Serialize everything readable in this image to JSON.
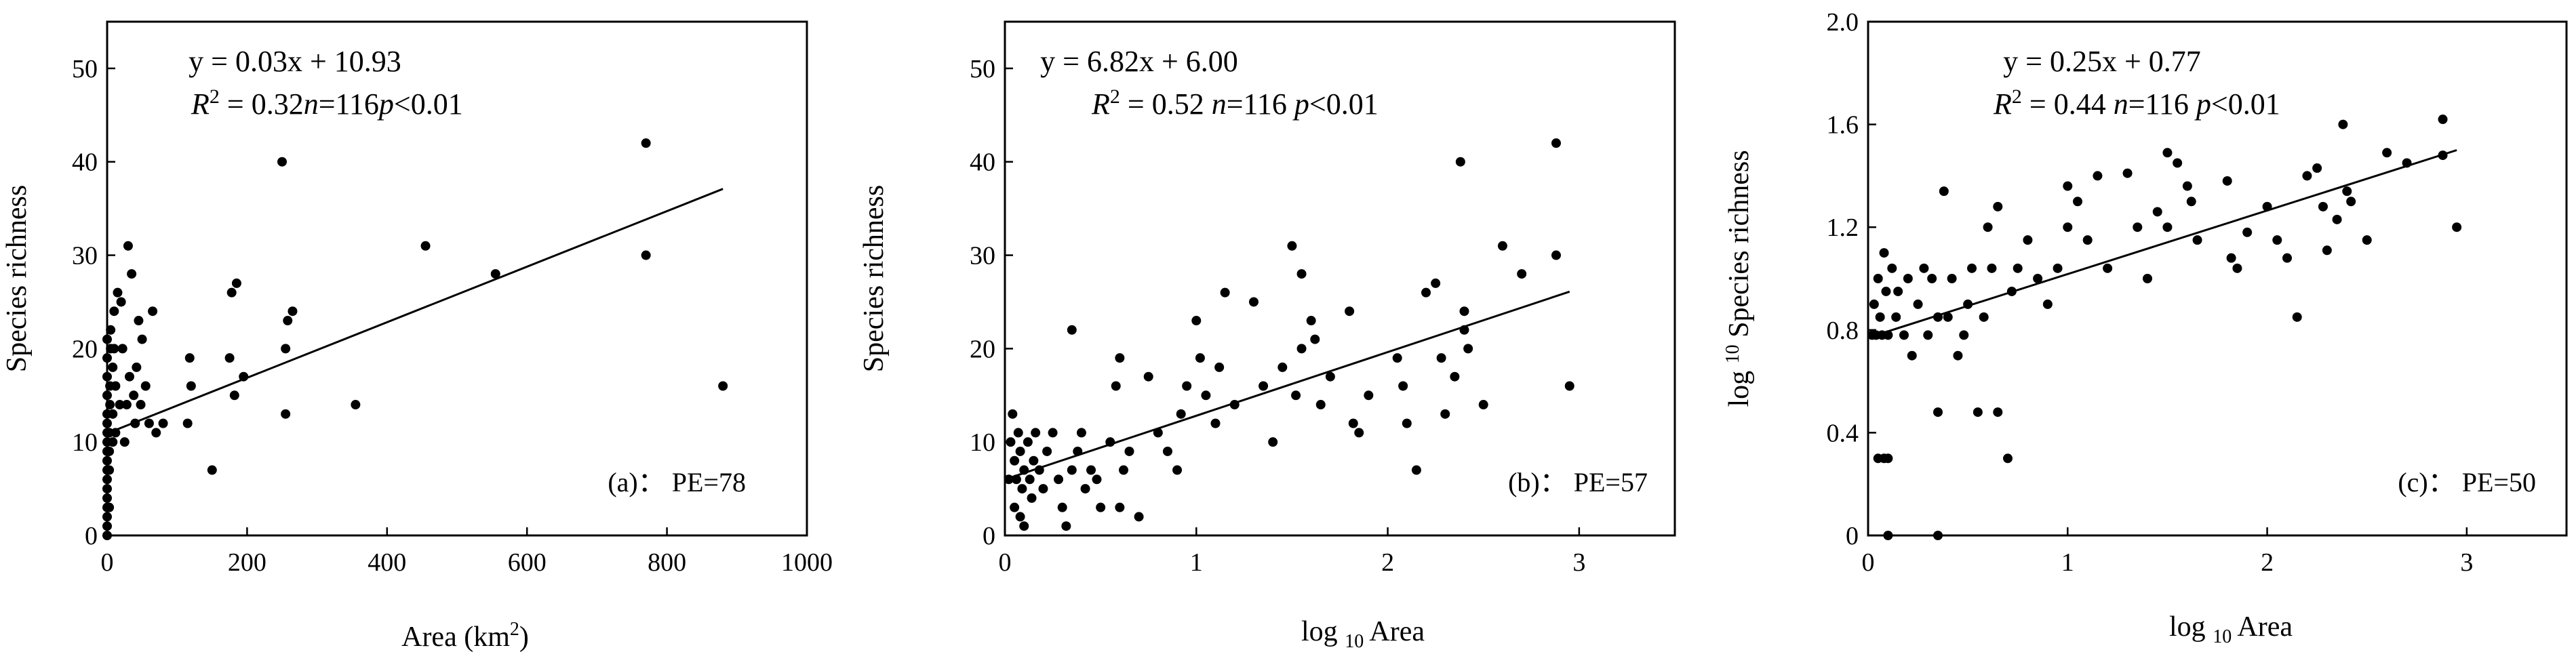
{
  "chart_data": [
    {
      "type": "scatter",
      "xlabel": "Area (km",
      "xlabel_sup": "2",
      "xlabel_close": ")",
      "ylabel": "Species richness",
      "xlim": [
        0,
        1000
      ],
      "ylim": [
        0,
        55
      ],
      "xticks": [
        "0",
        "200",
        "400",
        "600",
        "800",
        "1000"
      ],
      "xtick_values": [
        0,
        200,
        400,
        600,
        800,
        1000
      ],
      "yticks": [
        "0",
        "10",
        "20",
        "30",
        "40",
        "50"
      ],
      "ytick_values": [
        0,
        10,
        20,
        30,
        40,
        50
      ],
      "equation": "y = 0.03x + 10.93",
      "stats": {
        "r2_label": "R",
        "r2_sup": "2",
        "r2_value": " = 0.32",
        "n_label": "n",
        "n_value": "=116",
        "p_label": "p",
        "p_value": "<0.01"
      },
      "annotation": "(a)： PE=78",
      "trendline": {
        "x": [
          0,
          880
        ],
        "y": [
          10.93,
          37.1
        ]
      },
      "points": [
        [
          0,
          0
        ],
        [
          0,
          1
        ],
        [
          0,
          2
        ],
        [
          0,
          3
        ],
        [
          0,
          4
        ],
        [
          0,
          5
        ],
        [
          0,
          6
        ],
        [
          0,
          7
        ],
        [
          0,
          8
        ],
        [
          0,
          9
        ],
        [
          0,
          10
        ],
        [
          0,
          11
        ],
        [
          0,
          12
        ],
        [
          0,
          13
        ],
        [
          0,
          15
        ],
        [
          0,
          17
        ],
        [
          0,
          19
        ],
        [
          0,
          21
        ],
        [
          3,
          3
        ],
        [
          3,
          7
        ],
        [
          3,
          9
        ],
        [
          3,
          11
        ],
        [
          4,
          14
        ],
        [
          4,
          16
        ],
        [
          5,
          20
        ],
        [
          5,
          22
        ],
        [
          8,
          10
        ],
        [
          8,
          13
        ],
        [
          8,
          18
        ],
        [
          10,
          20
        ],
        [
          10,
          24
        ],
        [
          12,
          11
        ],
        [
          12,
          16
        ],
        [
          15,
          26
        ],
        [
          18,
          14
        ],
        [
          20,
          25
        ],
        [
          22,
          20
        ],
        [
          25,
          10
        ],
        [
          28,
          14
        ],
        [
          30,
          31
        ],
        [
          32,
          17
        ],
        [
          35,
          28
        ],
        [
          38,
          15
        ],
        [
          40,
          12
        ],
        [
          42,
          18
        ],
        [
          45,
          23
        ],
        [
          48,
          14
        ],
        [
          50,
          21
        ],
        [
          55,
          16
        ],
        [
          60,
          12
        ],
        [
          65,
          24
        ],
        [
          70,
          11
        ],
        [
          80,
          12
        ],
        [
          115,
          12
        ],
        [
          118,
          19
        ],
        [
          120,
          16
        ],
        [
          150,
          7
        ],
        [
          175,
          19
        ],
        [
          178,
          26
        ],
        [
          182,
          15
        ],
        [
          185,
          27
        ],
        [
          195,
          17
        ],
        [
          250,
          40
        ],
        [
          255,
          13
        ],
        [
          255,
          20
        ],
        [
          258,
          23
        ],
        [
          265,
          24
        ],
        [
          355,
          14
        ],
        [
          455,
          31
        ],
        [
          555,
          28
        ],
        [
          770,
          42
        ],
        [
          770,
          30
        ],
        [
          880,
          16
        ]
      ]
    },
    {
      "type": "scatter",
      "xlabel": "log ",
      "xlabel_sub": "10",
      "xlabel_tail": " Area",
      "ylabel": "Species richness",
      "xlim": [
        0,
        3.5
      ],
      "ylim": [
        0,
        55
      ],
      "xticks": [
        "0",
        "1",
        "2",
        "3"
      ],
      "xtick_values": [
        0,
        1,
        2,
        3
      ],
      "yticks": [
        "0",
        "10",
        "20",
        "30",
        "40",
        "50"
      ],
      "ytick_values": [
        0,
        10,
        20,
        30,
        40,
        50
      ],
      "equation": "y = 6.82x + 6.00",
      "stats": {
        "r2_label": "R",
        "r2_sup": "2",
        "r2_value": " = 0.52 ",
        "n_label": "n",
        "n_value": "=116 ",
        "p_label": "p",
        "p_value": "<0.01"
      },
      "annotation": "(b)： PE=57",
      "trendline": {
        "x": [
          0,
          2.95
        ],
        "y": [
          6.0,
          26.1
        ]
      },
      "points": [
        [
          0.02,
          6
        ],
        [
          0.03,
          10
        ],
        [
          0.04,
          13
        ],
        [
          0.05,
          8
        ],
        [
          0.05,
          3
        ],
        [
          0.06,
          6
        ],
        [
          0.07,
          11
        ],
        [
          0.08,
          9
        ],
        [
          0.08,
          2
        ],
        [
          0.09,
          5
        ],
        [
          0.1,
          7
        ],
        [
          0.1,
          1
        ],
        [
          0.12,
          10
        ],
        [
          0.13,
          6
        ],
        [
          0.14,
          4
        ],
        [
          0.15,
          8
        ],
        [
          0.16,
          11
        ],
        [
          0.18,
          7
        ],
        [
          0.2,
          5
        ],
        [
          0.22,
          9
        ],
        [
          0.25,
          11
        ],
        [
          0.28,
          6
        ],
        [
          0.3,
          3
        ],
        [
          0.32,
          1
        ],
        [
          0.35,
          22
        ],
        [
          0.35,
          7
        ],
        [
          0.38,
          9
        ],
        [
          0.4,
          11
        ],
        [
          0.42,
          5
        ],
        [
          0.45,
          7
        ],
        [
          0.48,
          6
        ],
        [
          0.5,
          3
        ],
        [
          0.55,
          10
        ],
        [
          0.58,
          16
        ],
        [
          0.6,
          19
        ],
        [
          0.6,
          3
        ],
        [
          0.62,
          7
        ],
        [
          0.65,
          9
        ],
        [
          0.7,
          2
        ],
        [
          0.75,
          17
        ],
        [
          0.8,
          11
        ],
        [
          0.85,
          9
        ],
        [
          0.9,
          7
        ],
        [
          0.92,
          13
        ],
        [
          0.95,
          16
        ],
        [
          1.0,
          23
        ],
        [
          1.02,
          19
        ],
        [
          1.05,
          15
        ],
        [
          1.1,
          12
        ],
        [
          1.12,
          18
        ],
        [
          1.15,
          26
        ],
        [
          1.2,
          14
        ],
        [
          1.3,
          25
        ],
        [
          1.35,
          16
        ],
        [
          1.4,
          10
        ],
        [
          1.45,
          18
        ],
        [
          1.5,
          31
        ],
        [
          1.52,
          15
        ],
        [
          1.55,
          28
        ],
        [
          1.55,
          20
        ],
        [
          1.6,
          23
        ],
        [
          1.62,
          21
        ],
        [
          1.65,
          14
        ],
        [
          1.7,
          17
        ],
        [
          1.8,
          24
        ],
        [
          1.82,
          12
        ],
        [
          1.85,
          11
        ],
        [
          1.9,
          15
        ],
        [
          2.05,
          19
        ],
        [
          2.08,
          16
        ],
        [
          2.1,
          12
        ],
        [
          2.15,
          7
        ],
        [
          2.2,
          26
        ],
        [
          2.25,
          27
        ],
        [
          2.28,
          19
        ],
        [
          2.3,
          13
        ],
        [
          2.35,
          17
        ],
        [
          2.38,
          40
        ],
        [
          2.4,
          22
        ],
        [
          2.4,
          24
        ],
        [
          2.42,
          20
        ],
        [
          2.5,
          14
        ],
        [
          2.6,
          31
        ],
        [
          2.7,
          28
        ],
        [
          2.88,
          42
        ],
        [
          2.88,
          30
        ],
        [
          2.95,
          16
        ]
      ]
    },
    {
      "type": "scatter",
      "xlabel": "log ",
      "xlabel_sub": "10",
      "xlabel_tail": " Area",
      "ylabel_prefix": "log ",
      "ylabel_sup": "10",
      "ylabel": " Species richness",
      "xlim": [
        0,
        3.5
      ],
      "ylim": [
        0,
        2.0
      ],
      "xticks": [
        "0",
        "1",
        "2",
        "3"
      ],
      "xtick_values": [
        0,
        1,
        2,
        3
      ],
      "yticks": [
        "0",
        "0.4",
        "0.8",
        "1.2",
        "1.6",
        "2.0"
      ],
      "ytick_values": [
        0,
        0.4,
        0.8,
        1.2,
        1.6,
        2.0
      ],
      "equation": "y = 0.25x + 0.77",
      "stats": {
        "r2_label": "R",
        "r2_sup": "2",
        "r2_value": " = 0.44  ",
        "n_label": "n",
        "n_value": "=116  ",
        "p_label": "p",
        "p_value": "<0.01"
      },
      "annotation": "(c)： PE=50",
      "trendline": {
        "x": [
          0,
          2.95
        ],
        "y": [
          0.77,
          1.5
        ]
      },
      "points": [
        [
          0.02,
          0.78
        ],
        [
          0.03,
          0.9
        ],
        [
          0.04,
          0.78
        ],
        [
          0.05,
          1.0
        ],
        [
          0.06,
          0.85
        ],
        [
          0.07,
          0.78
        ],
        [
          0.08,
          1.1
        ],
        [
          0.09,
          0.95
        ],
        [
          0.1,
          0.78
        ],
        [
          0.05,
          0.3
        ],
        [
          0.08,
          0.3
        ],
        [
          0.1,
          0.3
        ],
        [
          0.1,
          0.0
        ],
        [
          0.12,
          1.04
        ],
        [
          0.14,
          0.85
        ],
        [
          0.15,
          0.95
        ],
        [
          0.18,
          0.78
        ],
        [
          0.2,
          1.0
        ],
        [
          0.22,
          0.7
        ],
        [
          0.25,
          0.9
        ],
        [
          0.28,
          1.04
        ],
        [
          0.3,
          0.78
        ],
        [
          0.32,
          1.0
        ],
        [
          0.35,
          0.85
        ],
        [
          0.35,
          0.48
        ],
        [
          0.35,
          0.0
        ],
        [
          0.38,
          1.34
        ],
        [
          0.4,
          0.85
        ],
        [
          0.42,
          1.0
        ],
        [
          0.45,
          0.7
        ],
        [
          0.48,
          0.78
        ],
        [
          0.5,
          0.9
        ],
        [
          0.52,
          1.04
        ],
        [
          0.55,
          0.48
        ],
        [
          0.58,
          0.85
        ],
        [
          0.6,
          1.2
        ],
        [
          0.62,
          1.04
        ],
        [
          0.65,
          1.28
        ],
        [
          0.65,
          0.48
        ],
        [
          0.7,
          0.3
        ],
        [
          0.72,
          0.95
        ],
        [
          0.75,
          1.04
        ],
        [
          0.8,
          1.15
        ],
        [
          0.85,
          1.0
        ],
        [
          0.9,
          0.9
        ],
        [
          0.95,
          1.04
        ],
        [
          1.0,
          1.36
        ],
        [
          1.0,
          1.2
        ],
        [
          1.05,
          1.3
        ],
        [
          1.1,
          1.15
        ],
        [
          1.15,
          1.4
        ],
        [
          1.2,
          1.04
        ],
        [
          1.3,
          1.41
        ],
        [
          1.35,
          1.2
        ],
        [
          1.4,
          1.0
        ],
        [
          1.45,
          1.26
        ],
        [
          1.5,
          1.49
        ],
        [
          1.5,
          1.2
        ],
        [
          1.55,
          1.45
        ],
        [
          1.6,
          1.36
        ],
        [
          1.62,
          1.3
        ],
        [
          1.65,
          1.15
        ],
        [
          1.8,
          1.38
        ],
        [
          1.82,
          1.08
        ],
        [
          1.85,
          1.04
        ],
        [
          1.9,
          1.18
        ],
        [
          2.0,
          1.28
        ],
        [
          2.05,
          1.15
        ],
        [
          2.1,
          1.08
        ],
        [
          2.15,
          0.85
        ],
        [
          2.2,
          1.4
        ],
        [
          2.25,
          1.43
        ],
        [
          2.28,
          1.28
        ],
        [
          2.3,
          1.11
        ],
        [
          2.35,
          1.23
        ],
        [
          2.38,
          1.6
        ],
        [
          2.4,
          1.34
        ],
        [
          2.42,
          1.3
        ],
        [
          2.5,
          1.15
        ],
        [
          2.6,
          1.49
        ],
        [
          2.7,
          1.45
        ],
        [
          2.88,
          1.62
        ],
        [
          2.88,
          1.48
        ],
        [
          2.95,
          1.2
        ]
      ]
    }
  ]
}
